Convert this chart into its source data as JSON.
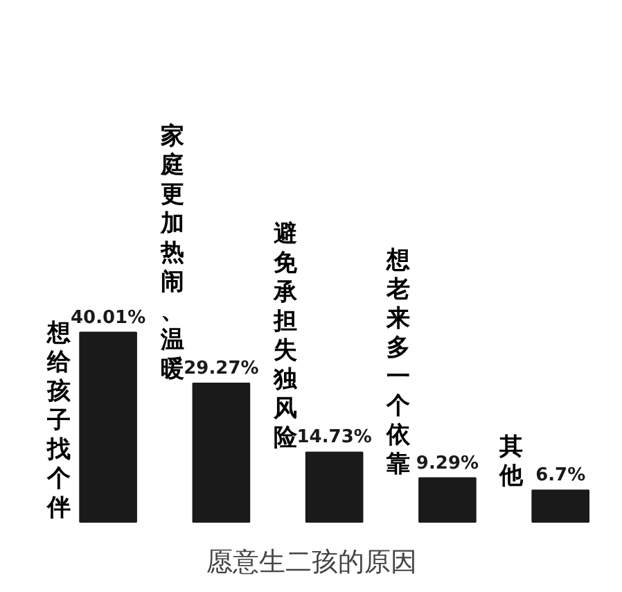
{
  "chart_data": {
    "type": "bar",
    "title": "愿意生二孩的原因",
    "categories": [
      "想给孩子找个伴",
      "家庭更加热闹、温暖",
      "避免承担失独风险",
      "想老来多一个依靠",
      "其他"
    ],
    "values": [
      40.01,
      29.27,
      14.73,
      9.29,
      6.7
    ],
    "value_labels": [
      "40.01%",
      "29.27%",
      "14.73%",
      "9.29%",
      "6.7%"
    ],
    "color": "#1a1a1a"
  }
}
